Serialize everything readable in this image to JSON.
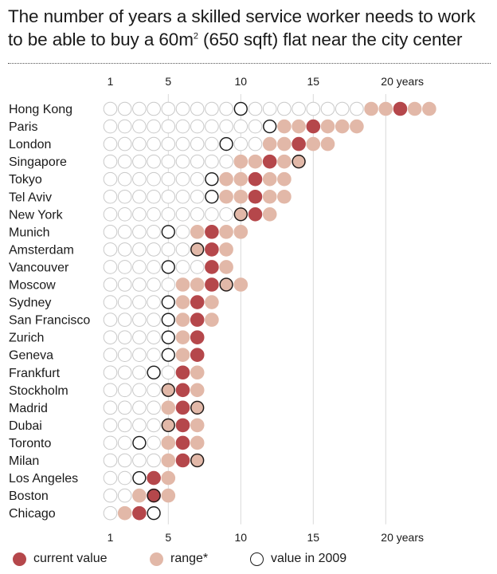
{
  "title_line1": "The number of years a skilled service worker needs to work",
  "title_line2_pre": "to be able to buy a 60m",
  "title_sup": "2",
  "title_line2_post": " (650 sqft) flat near the city center",
  "colors": {
    "current": "#b5474b",
    "range": "#e2b8a8",
    "outline": "#c9c9c9",
    "ring2009": "#1a1a1a",
    "grid": "#d9d9d9"
  },
  "legend": {
    "current": "current value",
    "range": "range*",
    "y2009": "value in 2009"
  },
  "chart_data": {
    "type": "dot-range",
    "title": "The number of years a skilled service worker needs to work to be able to buy a 60m2 (650 sqft) flat near the city center",
    "x_ticks": [
      {
        "value": 1,
        "label": "1"
      },
      {
        "value": 5,
        "label": "5"
      },
      {
        "value": 10,
        "label": "10"
      },
      {
        "value": 15,
        "label": "15"
      },
      {
        "value": 20,
        "label": "20 years"
      }
    ],
    "xlim": [
      1,
      23
    ],
    "cities": [
      {
        "name": "Hong Kong",
        "range": [
          19,
          23
        ],
        "current": 21,
        "y2009": 10
      },
      {
        "name": "Paris",
        "range": [
          13,
          18
        ],
        "current": 15,
        "y2009": 12
      },
      {
        "name": "London",
        "range": [
          12,
          16
        ],
        "current": 14,
        "y2009": 9
      },
      {
        "name": "Singapore",
        "range": [
          10,
          14
        ],
        "current": 12,
        "y2009": 14
      },
      {
        "name": "Tokyo",
        "range": [
          9,
          13
        ],
        "current": 11,
        "y2009": 8
      },
      {
        "name": "Tel Aviv",
        "range": [
          9,
          13
        ],
        "current": 11,
        "y2009": 8
      },
      {
        "name": "New York",
        "range": [
          10,
          12
        ],
        "current": 11,
        "y2009": 10
      },
      {
        "name": "Munich",
        "range": [
          7,
          10
        ],
        "current": 8,
        "y2009": 5
      },
      {
        "name": "Amsterdam",
        "range": [
          7,
          9
        ],
        "current": 8,
        "y2009": 7
      },
      {
        "name": "Vancouver",
        "range": [
          8,
          9
        ],
        "current": 8,
        "y2009": 5
      },
      {
        "name": "Moscow",
        "range": [
          6,
          10
        ],
        "current": 8,
        "y2009": 9
      },
      {
        "name": "Sydney",
        "range": [
          6,
          8
        ],
        "current": 7,
        "y2009": 5
      },
      {
        "name": "San Francisco",
        "range": [
          6,
          8
        ],
        "current": 7,
        "y2009": 5
      },
      {
        "name": "Zurich",
        "range": [
          6,
          7
        ],
        "current": 7,
        "y2009": 5
      },
      {
        "name": "Geneva",
        "range": [
          6,
          7
        ],
        "current": 7,
        "y2009": 5
      },
      {
        "name": "Frankfurt",
        "range": [
          6,
          7
        ],
        "current": 6,
        "y2009": 4
      },
      {
        "name": "Stockholm",
        "range": [
          5,
          7
        ],
        "current": 6,
        "y2009": 5
      },
      {
        "name": "Madrid",
        "range": [
          5,
          7
        ],
        "current": 6,
        "y2009": 7
      },
      {
        "name": "Dubai",
        "range": [
          5,
          7
        ],
        "current": 6,
        "y2009": 5
      },
      {
        "name": "Toronto",
        "range": [
          5,
          7
        ],
        "current": 6,
        "y2009": 3
      },
      {
        "name": "Milan",
        "range": [
          5,
          7
        ],
        "current": 6,
        "y2009": 7
      },
      {
        "name": "Los Angeles",
        "range": [
          4,
          5
        ],
        "current": 4,
        "y2009": 3
      },
      {
        "name": "Boston",
        "range": [
          3,
          5
        ],
        "current": 4,
        "y2009": 4
      },
      {
        "name": "Chicago",
        "range": [
          2,
          3
        ],
        "current": 3,
        "y2009": 4
      }
    ]
  }
}
